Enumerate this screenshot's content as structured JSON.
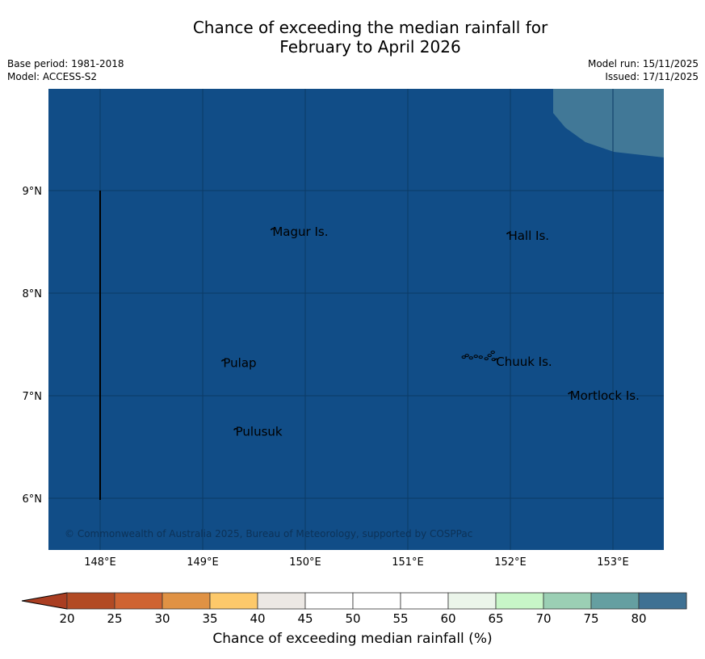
{
  "title": {
    "line1": "Chance of exceeding the median rainfall for",
    "line2": "February to April 2026"
  },
  "meta": {
    "base_period": "Base period: 1981-2018",
    "model": "Model: ACCESS-S2",
    "model_run": "Model run: 15/11/2025",
    "issued": "Issued: 17/11/2025"
  },
  "map": {
    "background_color": "#114d87",
    "band_color": "#417897",
    "band_value": "75-80",
    "latitude_labels": [
      {
        "lat": 9,
        "text": "9°N"
      },
      {
        "lat": 8,
        "text": "8°N"
      },
      {
        "lat": 7,
        "text": "7°N"
      },
      {
        "lat": 6,
        "text": "6°N"
      }
    ],
    "longitude_labels": [
      {
        "lon": 148,
        "text": "148°E"
      },
      {
        "lon": 149,
        "text": "149°E"
      },
      {
        "lon": 150,
        "text": "150°E"
      },
      {
        "lon": 151,
        "text": "151°E"
      },
      {
        "lon": 152,
        "text": "152°E"
      },
      {
        "lon": 153,
        "text": "153°E"
      }
    ],
    "places": [
      {
        "name": "Magur Is.",
        "lon": 149.68,
        "lat": 8.56
      },
      {
        "name": "Hall Is.",
        "lon": 151.98,
        "lat": 8.52
      },
      {
        "name": "Pulap",
        "lon": 149.2,
        "lat": 7.28
      },
      {
        "name": "Chuuk Is.",
        "lon": 151.86,
        "lat": 7.29
      },
      {
        "name": "Mortlock Is.",
        "lon": 152.58,
        "lat": 6.96
      },
      {
        "name": "Pulusuk",
        "lon": 149.32,
        "lat": 6.61
      }
    ],
    "copyright": "© Commonwealth of Australia 2025, Bureau of Meteorology, supported by COSPPac"
  },
  "colorbar": {
    "label": "Chance of exceeding median rainfall (%)",
    "ticks": [
      "20",
      "25",
      "30",
      "35",
      "40",
      "45",
      "50",
      "55",
      "60",
      "65",
      "70",
      "75",
      "80"
    ],
    "colors": [
      "#b24a24",
      "#cf6332",
      "#e09244",
      "#fdc96a",
      "#ece8e4",
      "#ffffff",
      "#ffffff",
      "#ffffff",
      "#ebf5ea",
      "#c8f6c8",
      "#9bcfb4",
      "#659fa1",
      "#3f7193"
    ],
    "under_color": "#aa3e22",
    "over_color": "#0d4a85"
  }
}
